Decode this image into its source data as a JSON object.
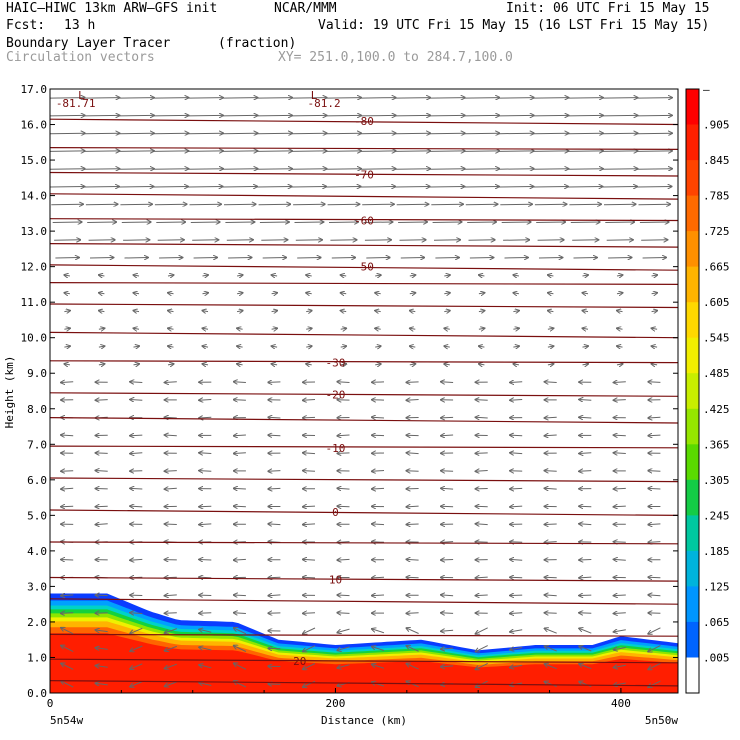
{
  "header": {
    "model": "HAIC–HIWC 13km ARW–GFS init",
    "org": "NCAR/MMM",
    "init": "Init: 06 UTC Fri 15 May 15",
    "fcst_label": "Fcst:",
    "fcst_value": "13 h",
    "valid": "Valid: 19 UTC Fri 15 May 15 (16 LST Fri 15 May 15)",
    "field": "Boundary Layer Tracer",
    "field_units": "(fraction)",
    "overlay": "Circulation vectors",
    "xy_range": "XY= 251.0,100.0 to 284.7,100.0"
  },
  "chart_data": {
    "type": "heatmap",
    "ylabel": "Height (km)",
    "xlabel": "Distance (km)",
    "x_left_label": "5n54w",
    "x_right_label": "5n50w",
    "xlim": [
      0,
      440
    ],
    "ylim": [
      0,
      17
    ],
    "yticks": [
      "0.0",
      "1.0",
      "2.0",
      "3.0",
      "4.0",
      "5.0",
      "6.0",
      "7.0",
      "8.0",
      "9.0",
      "10.0",
      "11.0",
      "12.0",
      "13.0",
      "14.0",
      "15.0",
      "16.0",
      "17.0"
    ],
    "xticks": [
      "0",
      "200",
      "400"
    ],
    "colorbar_labels": [
      "–",
      ".905",
      ".845",
      ".785",
      ".725",
      ".665",
      ".605",
      ".545",
      ".485",
      ".425",
      ".365",
      ".305",
      ".245",
      ".185",
      ".125",
      ".065",
      ".005"
    ],
    "colorbar_colors": [
      "#ff0000",
      "#ff2000",
      "#ff4400",
      "#ff6a00",
      "#ff9000",
      "#ffb400",
      "#ffd800",
      "#f2ee00",
      "#c8ee00",
      "#96e600",
      "#5ada00",
      "#14cc46",
      "#00c8a0",
      "#00b4dc",
      "#0096ff",
      "#0064ff",
      "#ffffff"
    ],
    "tracer_top_km": [
      {
        "x": 0,
        "top": 2.8
      },
      {
        "x": 40,
        "top": 2.8
      },
      {
        "x": 70,
        "top": 2.3
      },
      {
        "x": 90,
        "top": 2.05
      },
      {
        "x": 130,
        "top": 2.0
      },
      {
        "x": 160,
        "top": 1.5
      },
      {
        "x": 200,
        "top": 1.35
      },
      {
        "x": 260,
        "top": 1.5
      },
      {
        "x": 300,
        "top": 1.2
      },
      {
        "x": 340,
        "top": 1.35
      },
      {
        "x": 380,
        "top": 1.35
      },
      {
        "x": 400,
        "top": 1.6
      },
      {
        "x": 440,
        "top": 1.4
      }
    ],
    "temperature_contours": [
      {
        "label": "-81.71",
        "height_km": 16.6
      },
      {
        "label": "-81.2",
        "height_km": 16.6
      },
      {
        "label": "-80",
        "height_km": 16.1
      },
      {
        "label": "-70",
        "height_km": 14.6
      },
      {
        "label": "-60",
        "height_km": 13.3
      },
      {
        "label": "-50",
        "height_km": 12.0
      },
      {
        "label": "-30",
        "height_km": 9.3
      },
      {
        "label": "-20",
        "height_km": 8.4
      },
      {
        "label": "-10",
        "height_km": 6.9
      },
      {
        "label": "0",
        "height_km": 5.1
      },
      {
        "label": "10",
        "height_km": 3.2
      },
      {
        "label": "20",
        "height_km": 0.9
      }
    ],
    "low_markers": [
      {
        "label": "L",
        "x_km": 22
      },
      {
        "label": "L",
        "x_km": 185
      }
    ]
  }
}
